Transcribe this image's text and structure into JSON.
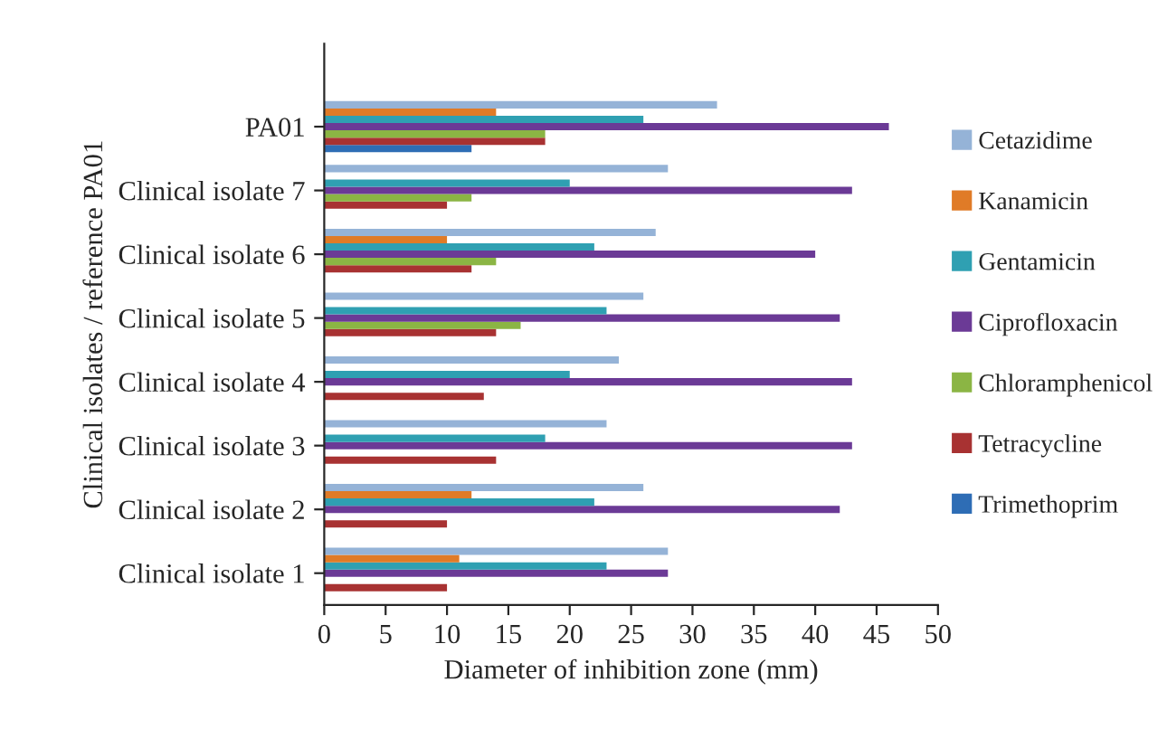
{
  "chart_data": {
    "type": "bar",
    "orientation": "horizontal",
    "xlabel": "Diameter of inhibition zone (mm)",
    "ylabel": "Clinical isolates / reference PA01",
    "categories": [
      "PA01",
      "Clinical isolate 7",
      "Clinical isolate 6",
      "Clinical isolate 5",
      "Clinical isolate 4",
      "Clinical isolate 3",
      "Clinical isolate 2",
      "Clinical isolate 1"
    ],
    "series": [
      {
        "name": "Trimethoprim",
        "color": "#2e6db5",
        "values": [
          12,
          null,
          null,
          null,
          null,
          null,
          null,
          null
        ]
      },
      {
        "name": "Tetracycline",
        "color": "#a83232",
        "values": [
          18,
          10,
          12,
          14,
          13,
          14,
          10,
          10
        ]
      },
      {
        "name": "Chloramphenicol",
        "color": "#8bb544",
        "values": [
          18,
          12,
          14,
          16,
          null,
          null,
          null,
          null
        ]
      },
      {
        "name": "Ciprofloxacin",
        "color": "#6b3a96",
        "values": [
          46,
          43,
          40,
          42,
          43,
          43,
          42,
          28
        ]
      },
      {
        "name": "Gentamicin",
        "color": "#2fa0b2",
        "values": [
          26,
          20,
          22,
          23,
          20,
          18,
          22,
          23
        ]
      },
      {
        "name": "Kanamicin",
        "color": "#e07b27",
        "values": [
          14,
          null,
          10,
          null,
          null,
          null,
          12,
          11
        ]
      },
      {
        "name": "Cetazidime",
        "color": "#95b3d7",
        "values": [
          32,
          28,
          27,
          26,
          24,
          23,
          26,
          28
        ]
      }
    ],
    "xlim": [
      0,
      50
    ],
    "xticks": [
      0,
      5,
      10,
      15,
      20,
      25,
      30,
      35,
      40,
      45,
      50
    ],
    "grid": false,
    "legend": "right"
  }
}
